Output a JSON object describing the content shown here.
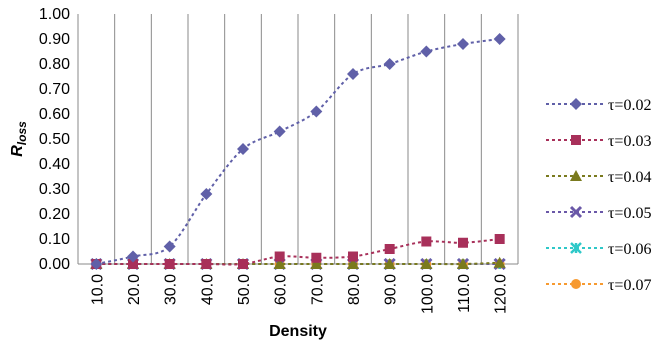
{
  "chart_data": {
    "type": "line",
    "title": "",
    "xlabel": "Density",
    "ylabel": "R",
    "ylabel_sub": "loss",
    "x": [
      10.0,
      20.0,
      30.0,
      40.0,
      50.0,
      60.0,
      70.0,
      80.0,
      90.0,
      100.0,
      110.0,
      120.0
    ],
    "categories": [
      "10.0",
      "20.0",
      "30.0",
      "40.0",
      "50.0",
      "60.0",
      "70.0",
      "80.0",
      "90.0",
      "100.0",
      "110.0",
      "120.0"
    ],
    "ylim": [
      0,
      1.0
    ],
    "yticks": [
      "0.00",
      "0.10",
      "0.20",
      "0.30",
      "0.40",
      "0.50",
      "0.60",
      "0.70",
      "0.80",
      "0.90",
      "1.00"
    ],
    "grid": "vertical",
    "legend_position": "right",
    "series": [
      {
        "name": "τ=0.02",
        "marker": "diamond",
        "color": "#6060a8",
        "values": [
          0.0,
          0.03,
          0.07,
          0.28,
          0.46,
          0.53,
          0.61,
          0.76,
          0.8,
          0.85,
          0.88,
          0.9
        ]
      },
      {
        "name": "τ=0.03",
        "marker": "square",
        "color": "#a8305a",
        "values": [
          0.0,
          0.0,
          0.0,
          0.0,
          0.0,
          0.03,
          0.025,
          0.03,
          0.06,
          0.09,
          0.085,
          0.1
        ]
      },
      {
        "name": "τ=0.04",
        "marker": "triangle",
        "color": "#7a7a1e",
        "values": [
          0.0,
          0.0,
          0.0,
          0.0,
          0.0,
          0.0,
          0.0,
          0.0,
          0.0,
          0.0,
          0.0,
          0.005
        ]
      },
      {
        "name": "τ=0.05",
        "marker": "x",
        "color": "#6a58a8",
        "values": [
          0.0,
          0.0,
          0.0,
          0.0,
          0.0,
          0.0,
          0.0,
          0.0,
          0.0,
          0.0,
          0.0,
          0.0
        ]
      },
      {
        "name": "τ=0.06",
        "marker": "asterisk",
        "color": "#2ec8c8",
        "values": [
          0.0,
          0.0,
          0.0,
          0.0,
          0.0,
          0.0,
          0.0,
          0.0,
          0.0,
          0.0,
          0.0,
          0.0
        ]
      },
      {
        "name": "τ=0.07",
        "marker": "circle",
        "color": "#f79a30",
        "values": [
          0.0,
          0.0,
          0.0,
          0.0,
          0.0,
          0.0,
          0.0,
          0.0,
          0.0,
          0.0,
          0.0,
          0.0
        ]
      }
    ]
  }
}
